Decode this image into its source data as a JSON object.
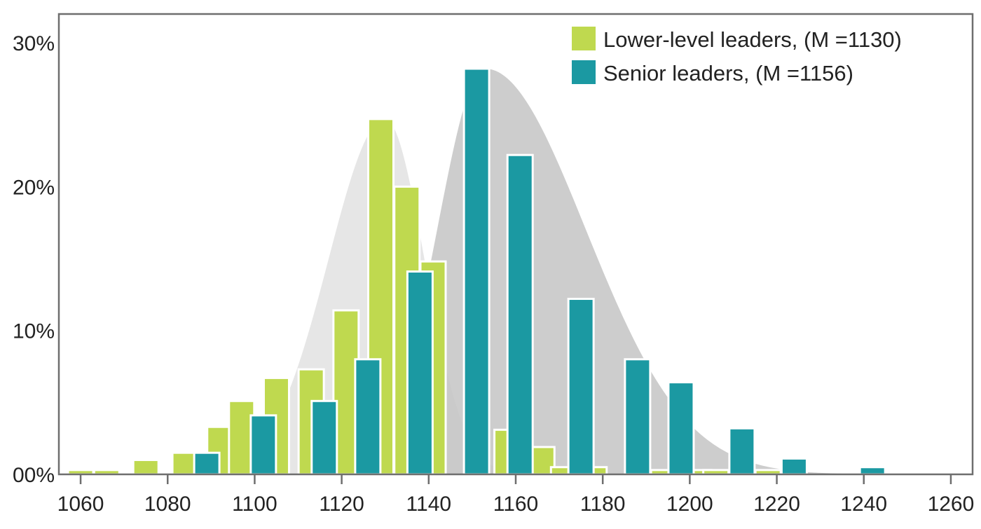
{
  "chart_data": {
    "type": "bar",
    "title": "",
    "xlabel": "",
    "ylabel": "",
    "xlim": [
      1055,
      1265
    ],
    "ylim": [
      0,
      32
    ],
    "x_ticks": [
      1060,
      1080,
      1100,
      1120,
      1140,
      1160,
      1180,
      1200,
      1220,
      1240,
      1260
    ],
    "y_ticks": [
      {
        "value": 0,
        "label": "00%"
      },
      {
        "value": 10,
        "label": "10%"
      },
      {
        "value": 20,
        "label": "20%"
      },
      {
        "value": 30,
        "label": "30%"
      }
    ],
    "legend_position": "top-right",
    "series": [
      {
        "name": "Lower-level leaders, (M =1130)",
        "color": "#bfd94f",
        "points": [
          {
            "x": 1060,
            "y": 0.3
          },
          {
            "x": 1066,
            "y": 0.3
          },
          {
            "x": 1075,
            "y": 1.0
          },
          {
            "x": 1084,
            "y": 1.5
          },
          {
            "x": 1092,
            "y": 3.3
          },
          {
            "x": 1097,
            "y": 5.1
          },
          {
            "x": 1105,
            "y": 6.7
          },
          {
            "x": 1113,
            "y": 7.3
          },
          {
            "x": 1121,
            "y": 11.4
          },
          {
            "x": 1129,
            "y": 24.7
          },
          {
            "x": 1135,
            "y": 20.0
          },
          {
            "x": 1141,
            "y": 14.8
          },
          {
            "x": 1158,
            "y": 3.1
          },
          {
            "x": 1166,
            "y": 1.9
          },
          {
            "x": 1171,
            "y": 0.5
          },
          {
            "x": 1178,
            "y": 0.5
          },
          {
            "x": 1194,
            "y": 0.3
          },
          {
            "x": 1202,
            "y": 0.3
          },
          {
            "x": 1206,
            "y": 0.3
          },
          {
            "x": 1218,
            "y": 0.3
          }
        ]
      },
      {
        "name": "Senior leaders, (M =1156)",
        "color": "#1b99a2",
        "points": [
          {
            "x": 1089,
            "y": 1.5
          },
          {
            "x": 1102,
            "y": 4.1
          },
          {
            "x": 1116,
            "y": 5.1
          },
          {
            "x": 1126,
            "y": 8.0
          },
          {
            "x": 1138,
            "y": 14.1
          },
          {
            "x": 1151,
            "y": 28.2
          },
          {
            "x": 1161,
            "y": 22.2
          },
          {
            "x": 1175,
            "y": 12.2
          },
          {
            "x": 1188,
            "y": 8.0
          },
          {
            "x": 1198,
            "y": 6.4
          },
          {
            "x": 1212,
            "y": 3.2
          },
          {
            "x": 1224,
            "y": 1.1
          },
          {
            "x": 1242,
            "y": 0.5
          }
        ]
      }
    ],
    "curves": [
      {
        "series": "Lower-level leaders, (M =1130)",
        "mean": 1130,
        "peak": 24.7,
        "sd_left": 13,
        "sd_right": 9,
        "color": "#e6e6e6"
      },
      {
        "series": "Senior leaders, (M =1156)",
        "mean": 1153,
        "peak": 28.2,
        "sd_left": 11,
        "sd_right": 23,
        "color": "#c4c4c4"
      }
    ]
  }
}
